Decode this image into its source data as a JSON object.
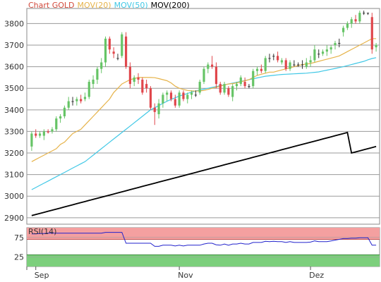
{
  "chart_data": [
    {
      "type": "candlestick",
      "legend": [
        {
          "name": "Chart GOLD",
          "color": "#d24a3c"
        },
        {
          "name": "MOV(20)",
          "color": "#e6b34a"
        },
        {
          "name": "MOV(50)",
          "color": "#41c8e6"
        },
        {
          "name": "MOV(200)",
          "color": "#000000"
        }
      ],
      "legend_position": "top-left",
      "ylim": [
        2870,
        3870
      ],
      "yticks": [
        2900,
        3000,
        3100,
        3200,
        3300,
        3400,
        3500,
        3600,
        3700,
        3800
      ],
      "grid": true,
      "up_color": "#66c466",
      "down_color": "#e0474c",
      "neutral_color": "#333333",
      "candles": [
        {
          "o": 3230,
          "h": 3300,
          "l": 3210,
          "c": 3290
        },
        {
          "o": 3290,
          "h": 3310,
          "l": 3270,
          "c": 3280
        },
        {
          "o": 3280,
          "h": 3300,
          "l": 3270,
          "c": 3290
        },
        {
          "o": 3280,
          "h": 3310,
          "l": 3260,
          "c": 3300
        },
        {
          "o": 3300,
          "h": 3310,
          "l": 3290,
          "c": 3295
        },
        {
          "o": 3300,
          "h": 3320,
          "l": 3290,
          "c": 3310
        },
        {
          "o": 3310,
          "h": 3370,
          "l": 3300,
          "c": 3360
        },
        {
          "o": 3360,
          "h": 3380,
          "l": 3340,
          "c": 3370
        },
        {
          "o": 3370,
          "h": 3420,
          "l": 3360,
          "c": 3410
        },
        {
          "o": 3410,
          "h": 3460,
          "l": 3400,
          "c": 3440
        },
        {
          "o": 3440,
          "h": 3460,
          "l": 3420,
          "c": 3440
        },
        {
          "o": 3440,
          "h": 3460,
          "l": 3420,
          "c": 3450
        },
        {
          "o": 3450,
          "h": 3470,
          "l": 3430,
          "c": 3440
        },
        {
          "o": 3450,
          "h": 3480,
          "l": 3440,
          "c": 3460
        },
        {
          "o": 3460,
          "h": 3540,
          "l": 3450,
          "c": 3530
        },
        {
          "o": 3520,
          "h": 3560,
          "l": 3500,
          "c": 3540
        },
        {
          "o": 3540,
          "h": 3600,
          "l": 3520,
          "c": 3590
        },
        {
          "o": 3590,
          "h": 3640,
          "l": 3570,
          "c": 3620
        },
        {
          "o": 3620,
          "h": 3740,
          "l": 3600,
          "c": 3730
        },
        {
          "o": 3730,
          "h": 3740,
          "l": 3660,
          "c": 3680
        },
        {
          "o": 3670,
          "h": 3690,
          "l": 3640,
          "c": 3660
        },
        {
          "o": 3640,
          "h": 3660,
          "l": 3630,
          "c": 3640
        },
        {
          "o": 3650,
          "h": 3760,
          "l": 3640,
          "c": 3750
        },
        {
          "o": 3740,
          "h": 3760,
          "l": 3590,
          "c": 3600
        },
        {
          "o": 3600,
          "h": 3620,
          "l": 3500,
          "c": 3520
        },
        {
          "o": 3530,
          "h": 3560,
          "l": 3510,
          "c": 3550
        },
        {
          "o": 3550,
          "h": 3570,
          "l": 3520,
          "c": 3540
        },
        {
          "o": 3540,
          "h": 3550,
          "l": 3470,
          "c": 3480
        },
        {
          "o": 3520,
          "h": 3540,
          "l": 3480,
          "c": 3500
        },
        {
          "o": 3500,
          "h": 3510,
          "l": 3400,
          "c": 3410
        },
        {
          "o": 3410,
          "h": 3430,
          "l": 3330,
          "c": 3390
        },
        {
          "o": 3380,
          "h": 3450,
          "l": 3360,
          "c": 3430
        },
        {
          "o": 3430,
          "h": 3480,
          "l": 3410,
          "c": 3470
        },
        {
          "o": 3470,
          "h": 3490,
          "l": 3440,
          "c": 3480
        },
        {
          "o": 3480,
          "h": 3490,
          "l": 3440,
          "c": 3450
        },
        {
          "o": 3450,
          "h": 3470,
          "l": 3410,
          "c": 3420
        },
        {
          "o": 3420,
          "h": 3490,
          "l": 3410,
          "c": 3480
        },
        {
          "o": 3480,
          "h": 3490,
          "l": 3440,
          "c": 3450
        },
        {
          "o": 3450,
          "h": 3480,
          "l": 3430,
          "c": 3470
        },
        {
          "o": 3470,
          "h": 3490,
          "l": 3450,
          "c": 3480
        },
        {
          "o": 3470,
          "h": 3490,
          "l": 3460,
          "c": 3470
        },
        {
          "o": 3480,
          "h": 3540,
          "l": 3470,
          "c": 3530
        },
        {
          "o": 3530,
          "h": 3600,
          "l": 3520,
          "c": 3590
        },
        {
          "o": 3590,
          "h": 3620,
          "l": 3570,
          "c": 3610
        },
        {
          "o": 3610,
          "h": 3650,
          "l": 3590,
          "c": 3600
        },
        {
          "o": 3600,
          "h": 3620,
          "l": 3500,
          "c": 3520
        },
        {
          "o": 3520,
          "h": 3530,
          "l": 3470,
          "c": 3480
        },
        {
          "o": 3480,
          "h": 3530,
          "l": 3470,
          "c": 3520
        },
        {
          "o": 3500,
          "h": 3510,
          "l": 3460,
          "c": 3470
        },
        {
          "o": 3460,
          "h": 3520,
          "l": 3440,
          "c": 3510
        },
        {
          "o": 3510,
          "h": 3530,
          "l": 3490,
          "c": 3520
        },
        {
          "o": 3520,
          "h": 3560,
          "l": 3510,
          "c": 3550
        },
        {
          "o": 3530,
          "h": 3550,
          "l": 3500,
          "c": 3510
        },
        {
          "o": 3510,
          "h": 3520,
          "l": 3500,
          "c": 3510
        },
        {
          "o": 3510,
          "h": 3590,
          "l": 3500,
          "c": 3580
        },
        {
          "o": 3580,
          "h": 3600,
          "l": 3560,
          "c": 3590
        },
        {
          "o": 3590,
          "h": 3610,
          "l": 3570,
          "c": 3580
        },
        {
          "o": 3580,
          "h": 3650,
          "l": 3570,
          "c": 3640
        },
        {
          "o": 3640,
          "h": 3660,
          "l": 3620,
          "c": 3640
        },
        {
          "o": 3650,
          "h": 3660,
          "l": 3630,
          "c": 3650
        },
        {
          "o": 3650,
          "h": 3670,
          "l": 3620,
          "c": 3630
        },
        {
          "o": 3620,
          "h": 3640,
          "l": 3610,
          "c": 3630
        },
        {
          "o": 3630,
          "h": 3640,
          "l": 3580,
          "c": 3590
        },
        {
          "o": 3590,
          "h": 3630,
          "l": 3580,
          "c": 3620
        },
        {
          "o": 3610,
          "h": 3630,
          "l": 3600,
          "c": 3610
        },
        {
          "o": 3610,
          "h": 3620,
          "l": 3600,
          "c": 3610
        },
        {
          "o": 3610,
          "h": 3630,
          "l": 3590,
          "c": 3610
        },
        {
          "o": 3600,
          "h": 3640,
          "l": 3590,
          "c": 3620
        },
        {
          "o": 3620,
          "h": 3650,
          "l": 3600,
          "c": 3630
        },
        {
          "o": 3630,
          "h": 3700,
          "l": 3620,
          "c": 3680
        },
        {
          "o": 3660,
          "h": 3680,
          "l": 3640,
          "c": 3660
        },
        {
          "o": 3660,
          "h": 3680,
          "l": 3650,
          "c": 3670
        },
        {
          "o": 3670,
          "h": 3700,
          "l": 3650,
          "c": 3680
        },
        {
          "o": 3680,
          "h": 3700,
          "l": 3660,
          "c": 3690
        },
        {
          "o": 3700,
          "h": 3720,
          "l": 3680,
          "c": 3710
        },
        {
          "o": 3710,
          "h": 3730,
          "l": 3690,
          "c": 3710
        },
        {
          "o": 3760,
          "h": 3790,
          "l": 3740,
          "c": 3780
        },
        {
          "o": 3780,
          "h": 3810,
          "l": 3770,
          "c": 3800
        },
        {
          "o": 3800,
          "h": 3830,
          "l": 3780,
          "c": 3820
        },
        {
          "o": 3820,
          "h": 3840,
          "l": 3800,
          "c": 3810
        },
        {
          "o": 3810,
          "h": 3860,
          "l": 3800,
          "c": 3850
        },
        {
          "o": 3850,
          "h": 3860,
          "l": 3840,
          "c": 3850
        },
        {
          "o": 3850,
          "h": 3850,
          "l": 3840,
          "c": 3850
        },
        {
          "o": 3830,
          "h": 3850,
          "l": 3660,
          "c": 3680
        },
        {
          "o": 3690,
          "h": 3710,
          "l": 3670,
          "c": 3700
        }
      ],
      "mov20": [
        3160,
        3170,
        3180,
        3190,
        3200,
        3210,
        3220,
        3240,
        3250,
        3270,
        3290,
        3300,
        3310,
        3330,
        3350,
        3370,
        3390,
        3410,
        3430,
        3450,
        3480,
        3500,
        3520,
        3530,
        3540,
        3545,
        3550,
        3550,
        3550,
        3550,
        3549,
        3545,
        3540,
        3535,
        3525,
        3510,
        3500,
        3495,
        3490,
        3488,
        3487,
        3488,
        3490,
        3495,
        3500,
        3505,
        3510,
        3515,
        3520,
        3522,
        3525,
        3530,
        3535,
        3540,
        3550,
        3560,
        3565,
        3570,
        3575,
        3575,
        3580,
        3585,
        3590,
        3595,
        3600,
        3605,
        3610,
        3612,
        3615,
        3620,
        3625,
        3630,
        3635,
        3640,
        3645,
        3650,
        3660,
        3670,
        3680,
        3690,
        3700,
        3710,
        3720,
        3730,
        3730
      ],
      "mov50": [
        3030,
        3040,
        3050,
        3060,
        3070,
        3080,
        3090,
        3100,
        3110,
        3120,
        3130,
        3140,
        3150,
        3160,
        3175,
        3190,
        3205,
        3220,
        3235,
        3250,
        3265,
        3280,
        3295,
        3310,
        3325,
        3340,
        3355,
        3370,
        3385,
        3400,
        3410,
        3420,
        3430,
        3440,
        3448,
        3456,
        3464,
        3470,
        3476,
        3482,
        3488,
        3492,
        3496,
        3500,
        3504,
        3508,
        3512,
        3516,
        3520,
        3524,
        3528,
        3532,
        3536,
        3540,
        3544,
        3548,
        3552,
        3556,
        3558,
        3560,
        3562,
        3564,
        3565,
        3566,
        3567,
        3568,
        3569,
        3570,
        3572,
        3574,
        3576,
        3580,
        3584,
        3588,
        3592,
        3596,
        3600,
        3605,
        3610,
        3615,
        3620,
        3625,
        3632,
        3638,
        3642
      ],
      "mov200": [
        2910,
        2915,
        2920,
        2925,
        2930,
        2935,
        2940,
        2945,
        2950,
        2955,
        2960,
        2965,
        2970,
        2975,
        2980,
        2985,
        2990,
        2995,
        3000,
        3005,
        3010,
        3015,
        3020,
        3025,
        3030,
        3035,
        3040,
        3045,
        3050,
        3055,
        3060,
        3065,
        3070,
        3075,
        3080,
        3085,
        3090,
        3095,
        3100,
        3105,
        3110,
        3115,
        3120,
        3125,
        3130,
        3135,
        3140,
        3145,
        3150,
        3155,
        3160,
        3165,
        3170,
        3175,
        3180,
        3185,
        3190,
        3195,
        3200,
        3205,
        3210,
        3215,
        3220,
        3225,
        3230,
        3235,
        3240,
        3245,
        3250,
        3255,
        3260,
        3265,
        3270,
        3275,
        3280,
        3285,
        3290,
        3295,
        3200,
        3205,
        3210,
        3215,
        3220,
        3225,
        3230
      ]
    },
    {
      "type": "line",
      "title": "RSI(14)",
      "ylim": [
        0,
        100
      ],
      "yticks": [
        25,
        75
      ],
      "overbought": 70,
      "oversold": 30,
      "overbought_color": "#f4a0a0",
      "oversold_color": "#7ccf7c",
      "line_color": "#2222cc",
      "values": [
        84,
        84,
        85,
        85,
        86,
        86,
        86,
        86,
        86,
        86,
        86,
        86,
        86,
        86,
        86,
        86,
        86,
        86,
        88,
        88,
        88,
        88,
        88,
        60,
        60,
        60,
        60,
        60,
        60,
        60,
        52,
        52,
        55,
        55,
        55,
        53,
        55,
        53,
        55,
        55,
        55,
        55,
        58,
        60,
        60,
        56,
        55,
        58,
        55,
        58,
        58,
        60,
        58,
        58,
        62,
        62,
        62,
        65,
        64,
        65,
        64,
        64,
        62,
        64,
        62,
        62,
        62,
        62,
        63,
        66,
        64,
        64,
        64,
        66,
        68,
        70,
        72,
        72,
        73,
        73,
        74,
        74,
        74,
        55,
        55
      ]
    }
  ],
  "x_axis": {
    "tick_labels": [
      "Sep",
      "Nov",
      "Dez"
    ],
    "tick_index": [
      1,
      36,
      68
    ]
  }
}
